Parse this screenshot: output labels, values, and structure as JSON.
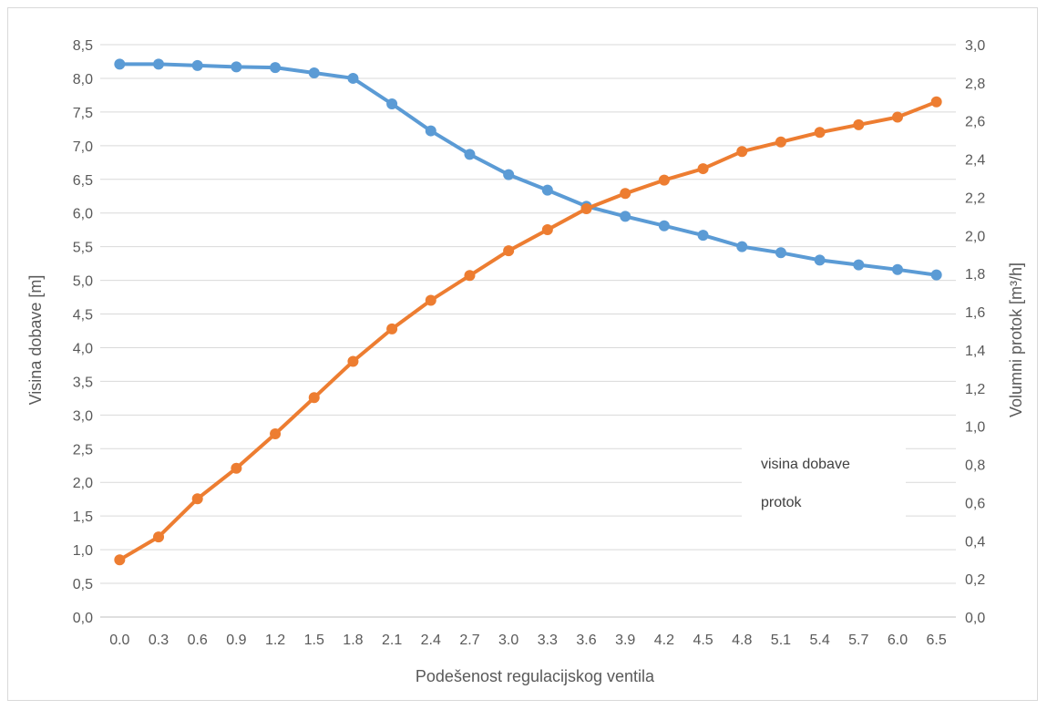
{
  "chart_data": {
    "type": "line",
    "xlabel": "Podešenost regulacijskog ventila",
    "ylabel_left": "Visina dobave [m]",
    "ylabel_right": "Volumni protok [m³/h]",
    "ylim_left": [
      0,
      8.5
    ],
    "ylim_right": [
      0,
      3.0
    ],
    "categories": [
      "0.0",
      "0.3",
      "0.6",
      "0.9",
      "1.2",
      "1.5",
      "1.8",
      "2.1",
      "2.4",
      "2.7",
      "3.0",
      "3.3",
      "3.6",
      "3.9",
      "4.2",
      "4.5",
      "4.8",
      "5.1",
      "5.4",
      "5.7",
      "6.0",
      "6.5"
    ],
    "y_ticks_left": [
      "0,0",
      "0,5",
      "1,0",
      "1,5",
      "2,0",
      "2,5",
      "3,0",
      "3,5",
      "4,0",
      "4,5",
      "5,0",
      "5,5",
      "6,0",
      "6,5",
      "7,0",
      "7,5",
      "8,0",
      "8,5"
    ],
    "y_ticks_right": [
      "0,0",
      "0,2",
      "0,4",
      "0,6",
      "0,8",
      "1,0",
      "1,2",
      "1,4",
      "1,6",
      "1,8",
      "2,0",
      "2,2",
      "2,4",
      "2,6",
      "2,8",
      "3,0"
    ],
    "grid": true,
    "legend_position": "right-bottom",
    "series": [
      {
        "name": "visina dobave",
        "axis": "left",
        "color": "#5b9bd5",
        "values": [
          8.21,
          8.21,
          8.19,
          8.17,
          8.16,
          8.08,
          8.0,
          7.62,
          7.22,
          6.87,
          6.57,
          6.34,
          6.1,
          5.95,
          5.81,
          5.67,
          5.5,
          5.41,
          5.3,
          5.23,
          5.16,
          5.08
        ]
      },
      {
        "name": "protok",
        "axis": "right",
        "color": "#ed7d31",
        "values": [
          0.3,
          0.42,
          0.62,
          0.78,
          0.96,
          1.15,
          1.34,
          1.51,
          1.66,
          1.79,
          1.92,
          2.03,
          2.14,
          2.22,
          2.29,
          2.35,
          2.44,
          2.49,
          2.54,
          2.58,
          2.62,
          2.7
        ]
      }
    ]
  }
}
